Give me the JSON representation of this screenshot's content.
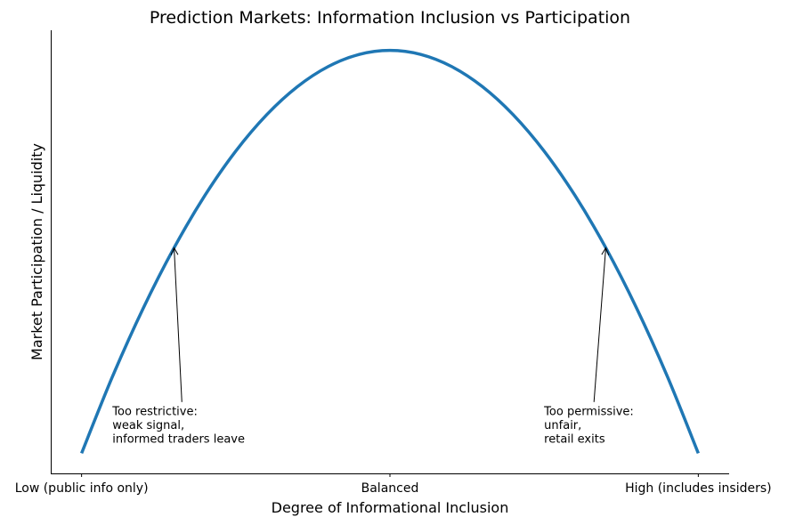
{
  "chart_data": {
    "type": "line",
    "title": "Prediction Markets: Information Inclusion vs Participation",
    "xlabel": "Degree of Informational Inclusion",
    "ylabel": "Market Participation / Liquidity",
    "xlim": [
      -0.05,
      1.05
    ],
    "ylim": [
      -0.05,
      1.05
    ],
    "grid": false,
    "xticks": [
      {
        "value": 0,
        "label": "Low (public info only)"
      },
      {
        "value": 0.5,
        "label": "Balanced"
      },
      {
        "value": 1,
        "label": "High (includes insiders)"
      }
    ],
    "yticks": [],
    "series": [
      {
        "color": "#1f77b4",
        "x": [
          0,
          0.05,
          0.1,
          0.15,
          0.2,
          0.25,
          0.3,
          0.35,
          0.4,
          0.45,
          0.5,
          0.55,
          0.6,
          0.65,
          0.7,
          0.75,
          0.8,
          0.85,
          0.9,
          0.95,
          1
        ],
        "y": [
          0,
          0.19,
          0.36,
          0.51,
          0.64,
          0.75,
          0.84,
          0.91,
          0.96,
          0.99,
          1,
          0.99,
          0.96,
          0.91,
          0.84,
          0.75,
          0.64,
          0.51,
          0.36,
          0.19,
          0
        ]
      }
    ],
    "annotations": [
      {
        "text": [
          "Too restrictive:",
          "weak signal,",
          "informed traders leave"
        ],
        "xy": [
          0.15,
          0.51
        ],
        "xytext": [
          0.05,
          0.02
        ]
      },
      {
        "text": [
          "Too permissive:",
          "unfair,",
          "retail exits"
        ],
        "xy": [
          0.85,
          0.51
        ],
        "xytext": [
          0.75,
          0.02
        ]
      }
    ]
  }
}
